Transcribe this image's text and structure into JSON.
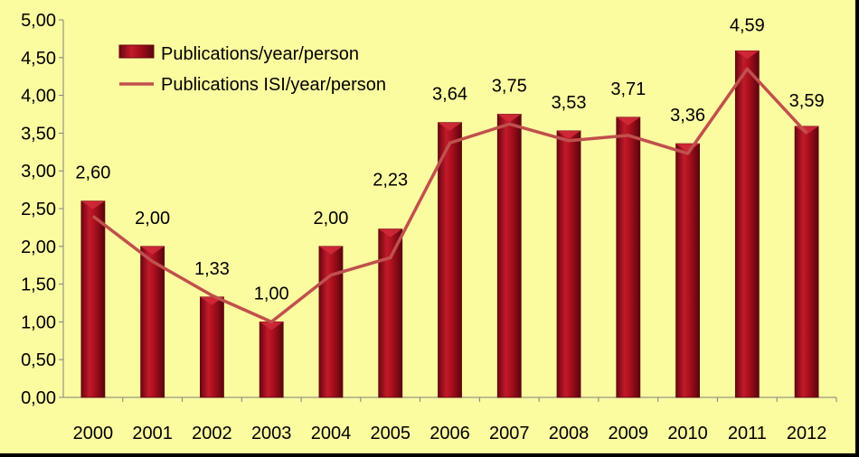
{
  "chart_data": {
    "type": "bar",
    "title": "",
    "xlabel": "",
    "ylabel": "",
    "categories": [
      "2000",
      "2001",
      "2002",
      "2003",
      "2004",
      "2005",
      "2006",
      "2007",
      "2008",
      "2009",
      "2010",
      "2011",
      "2012"
    ],
    "series": [
      {
        "name": "Publications/year/person",
        "type": "bar",
        "color": "#a50e1c",
        "values": [
          2.6,
          2.0,
          1.33,
          1.0,
          2.0,
          2.23,
          3.64,
          3.75,
          3.53,
          3.71,
          3.36,
          4.59,
          3.59
        ],
        "data_labels": [
          "2,60",
          "2,00",
          "1,33",
          "1,00",
          "2,00",
          "2,23",
          "3,64",
          "3,75",
          "3,53",
          "3,71",
          "3,36",
          "4,59",
          "3,59"
        ]
      },
      {
        "name": "Publications ISI/year/person",
        "type": "line",
        "color": "#c0504d",
        "values": [
          2.4,
          1.8,
          1.35,
          1.0,
          1.62,
          1.85,
          3.37,
          3.62,
          3.4,
          3.47,
          3.23,
          4.35,
          3.5
        ]
      }
    ],
    "ylim": [
      0,
      5
    ],
    "yticks": [
      "0,00",
      "0,50",
      "1,00",
      "1,50",
      "2,00",
      "2,50",
      "3,00",
      "3,50",
      "4,00",
      "4,50",
      "5,00"
    ],
    "grid": false,
    "legend": "top-left",
    "background": "#fbfba0"
  }
}
